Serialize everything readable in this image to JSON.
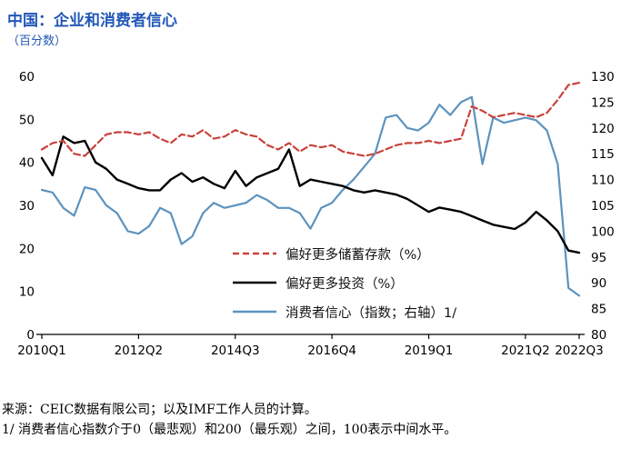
{
  "page": {
    "title": "中国：企业和消费者信心",
    "subtitle": "（百分数）",
    "source": "来源：CEIC数据有限公司；以及IMF工作人员的计算。",
    "footnote": "1/ 消费者信心指数介于0（最悲观）和200（最乐观）之间，100表示中间水平。"
  },
  "colors": {
    "title_blue": "#2257b8",
    "savings_red": "#c8423b",
    "investment_black": "#000000",
    "confidence_blue": "#5d93be",
    "axis_black": "#000000"
  },
  "chart_data": {
    "type": "line",
    "x_unit": "quarter",
    "x_start": "2010Q1",
    "x_end": "2022Q3",
    "x_tick_labels": [
      "2010Q1",
      "2012Q2",
      "2014Q3",
      "2016Q4",
      "2019Q1",
      "2021Q2",
      "2022Q3"
    ],
    "x_tick_indices": [
      0,
      9,
      18,
      27,
      36,
      45,
      50
    ],
    "left_axis": {
      "min": 0,
      "max": 60,
      "ticks": [
        0,
        10,
        20,
        30,
        40,
        50,
        60
      ]
    },
    "right_axis": {
      "min": 80,
      "max": 130,
      "ticks": [
        80,
        85,
        90,
        95,
        100,
        105,
        110,
        115,
        120,
        125,
        130
      ]
    },
    "legend_position": "center-right-inside",
    "grid": false,
    "series": [
      {
        "key": "confidence",
        "name": "消费者信心（指数；右轴）1/",
        "axis": "right",
        "color": "#5d93be",
        "dash": false,
        "values": [
          108,
          107.5,
          104.5,
          103,
          108.5,
          108,
          105,
          103.5,
          100,
          99.5,
          101,
          104.5,
          103.5,
          97.5,
          99,
          103.5,
          105.5,
          104.5,
          105,
          105.5,
          107,
          106,
          104.5,
          104.5,
          103.5,
          100.5,
          104.5,
          105.5,
          108,
          110,
          112.5,
          115,
          122,
          122.5,
          120,
          119.5,
          121,
          124.5,
          122.5,
          125,
          126,
          113,
          122,
          121,
          121.5,
          122,
          121.5,
          119.5,
          113,
          89,
          87.5
        ]
      },
      {
        "key": "investment",
        "name": "偏好更多投资（%）",
        "axis": "left",
        "color": "#000000",
        "dash": false,
        "values": [
          41,
          37,
          46,
          44.5,
          45,
          40,
          38.5,
          36,
          35,
          34,
          33.5,
          33.5,
          36,
          37.5,
          35.5,
          36.5,
          35,
          34,
          38,
          34.5,
          36.5,
          37.5,
          38.5,
          43,
          34.5,
          36,
          35.5,
          35,
          34.5,
          33.5,
          33,
          33.5,
          33,
          32.5,
          31.5,
          30,
          28.5,
          29.5,
          29,
          28.5,
          27.5,
          26.5,
          25.5,
          25,
          24.5,
          26,
          28.5,
          26.5,
          24,
          19.5,
          19
        ]
      },
      {
        "key": "savings",
        "name": "偏好更多储蓄存款（%）",
        "axis": "left",
        "color": "#c8423b",
        "dash": true,
        "values": [
          43,
          44.5,
          45,
          42,
          41.5,
          44,
          46.5,
          47,
          47,
          46.5,
          47,
          45.5,
          44.5,
          46.5,
          46,
          47.5,
          45.5,
          46,
          47.5,
          46.5,
          46,
          44,
          43,
          44.5,
          42.5,
          44,
          43.5,
          44,
          42.5,
          42,
          41.5,
          42,
          43,
          44,
          44.5,
          44.5,
          45,
          44.5,
          45,
          45.5,
          53,
          52,
          50.5,
          51,
          51.5,
          51,
          50.5,
          51.5,
          54.5,
          58,
          58.5
        ]
      }
    ],
    "legend_order": [
      "savings",
      "investment",
      "confidence"
    ]
  }
}
